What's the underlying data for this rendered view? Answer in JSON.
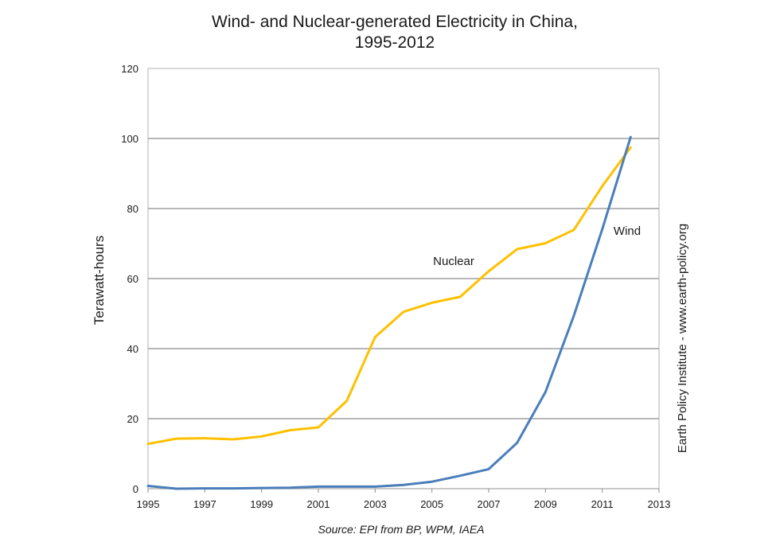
{
  "chart_data": {
    "type": "line",
    "title_lines": [
      "Wind- and Nuclear-generated Electricity in China,",
      "1995-2012"
    ],
    "ylabel": "Terawatt-hours",
    "xlabel": "",
    "source": "Source: EPI from BP, WPM, IAEA",
    "credit": "Earth Policy Institute - www.earth-policy.org",
    "xlim": [
      1995,
      2013
    ],
    "ylim": [
      0,
      120
    ],
    "x_ticks": [
      "1995",
      "1997",
      "1999",
      "2001",
      "2003",
      "2005",
      "2007",
      "2009",
      "2011",
      "2013"
    ],
    "y_ticks": [
      "0",
      "20",
      "40",
      "60",
      "80",
      "100",
      "120"
    ],
    "grid": "horizontal",
    "x": [
      1995,
      1996,
      1997,
      1998,
      1999,
      2000,
      2001,
      2002,
      2003,
      2004,
      2005,
      2006,
      2007,
      2008,
      2009,
      2010,
      2011,
      2012
    ],
    "series": [
      {
        "name": "Nuclear",
        "color": "#FFC000",
        "values": [
          12.8,
          14.3,
          14.4,
          14.1,
          14.9,
          16.7,
          17.5,
          25.1,
          43.3,
          50.5,
          53.1,
          54.8,
          62.1,
          68.4,
          70.1,
          73.9,
          86.4,
          97.4
        ]
      },
      {
        "name": "Wind",
        "color": "#4A7EBB",
        "values": [
          0.8,
          0.0,
          0.1,
          0.1,
          0.2,
          0.3,
          0.6,
          0.6,
          0.6,
          1.1,
          2.0,
          3.7,
          5.6,
          13.1,
          27.6,
          49.4,
          74.1,
          100.4
        ]
      }
    ]
  }
}
